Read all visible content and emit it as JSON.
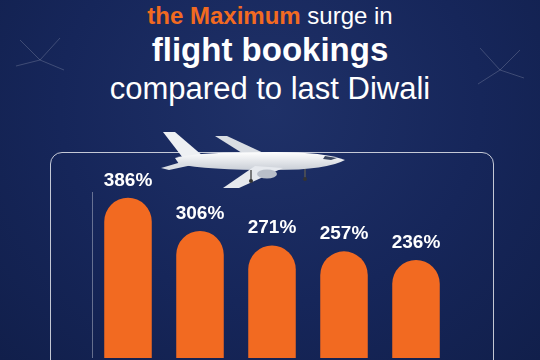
{
  "chart_data": {
    "type": "bar",
    "title": [
      "the Maximum surge in",
      "flight bookings",
      "compared to last Diwali"
    ],
    "categories": [
      null,
      null,
      null,
      null,
      null
    ],
    "values": [
      386,
      306,
      271,
      257,
      236
    ],
    "value_labels": [
      "386%",
      "306%",
      "271%",
      "257%",
      "236%"
    ],
    "color": "#f26a21",
    "ylim": [
      0,
      400
    ],
    "grid": false,
    "data_labels": true,
    "tick_labels": false
  }
}
